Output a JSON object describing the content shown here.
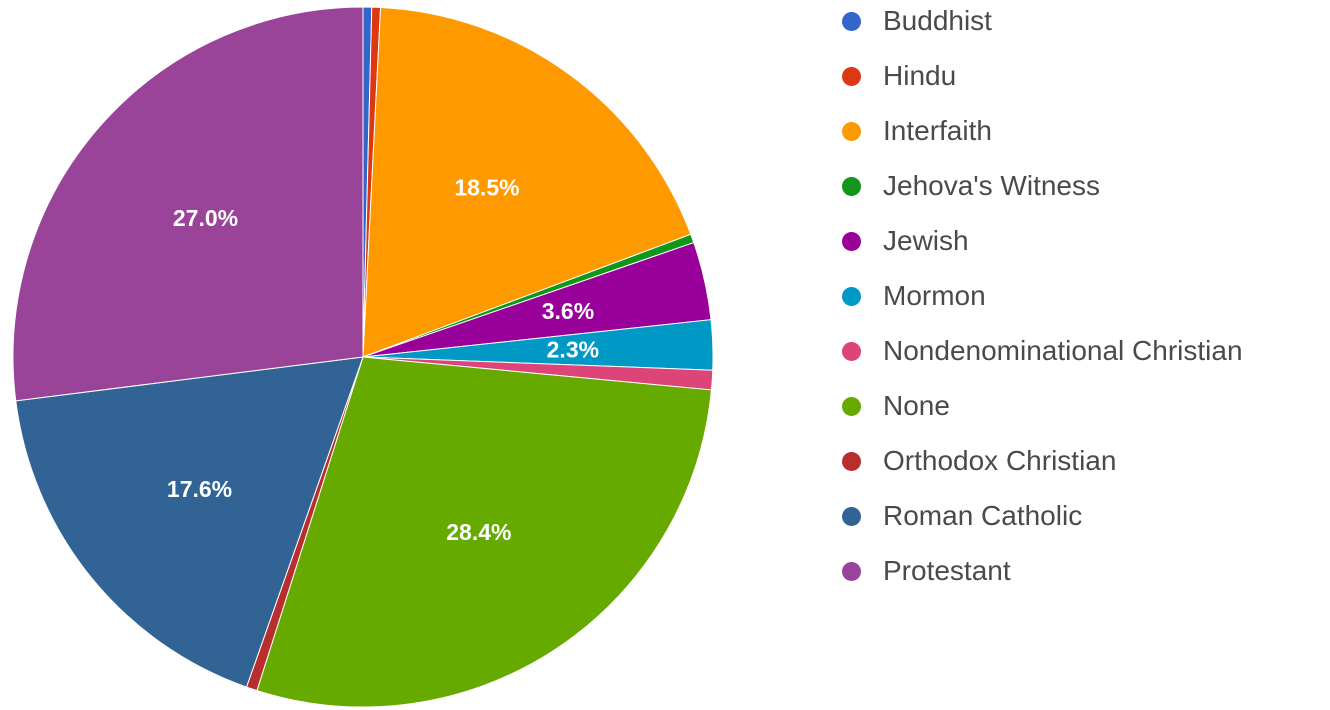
{
  "chart_data": {
    "type": "pie",
    "title": "",
    "legend_position": "right",
    "slices": [
      {
        "name": "Buddhist",
        "value": 0.4,
        "label": "",
        "color": "#3366cc"
      },
      {
        "name": "Hindu",
        "value": 0.4,
        "label": "",
        "color": "#dc3912"
      },
      {
        "name": "Interfaith",
        "value": 18.5,
        "label": "18.5%",
        "color": "#ff9900"
      },
      {
        "name": "Jehova's Witness",
        "value": 0.4,
        "label": "",
        "color": "#109618"
      },
      {
        "name": "Jewish",
        "value": 3.6,
        "label": "3.6%",
        "color": "#990099"
      },
      {
        "name": "Mormon",
        "value": 2.3,
        "label": "2.3%",
        "color": "#0099c6"
      },
      {
        "name": "Nondenominational Christian",
        "value": 0.9,
        "label": "",
        "color": "#dd4477"
      },
      {
        "name": "None",
        "value": 28.4,
        "label": "28.4%",
        "color": "#66aa00"
      },
      {
        "name": "Orthodox Christian",
        "value": 0.5,
        "label": "",
        "color": "#b82e2e"
      },
      {
        "name": "Roman Catholic",
        "value": 17.6,
        "label": "17.6%",
        "color": "#316395"
      },
      {
        "name": "Protestant",
        "value": 27.0,
        "label": "27.0%",
        "color": "#994499"
      }
    ]
  }
}
